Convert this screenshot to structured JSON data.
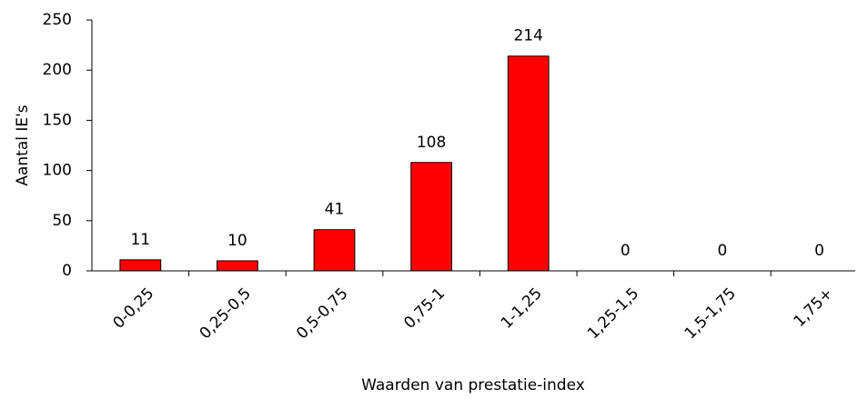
{
  "chart_data": {
    "type": "bar",
    "categories": [
      "0-0,25",
      "0,25-0,5",
      "0,5-0,75",
      "0,75-1",
      "1-1,25",
      "1,25-1,5",
      "1,5-1,75",
      "1,75+"
    ],
    "values": [
      11,
      10,
      41,
      108,
      214,
      0,
      0,
      0
    ],
    "color": "#ff0000",
    "ylim": [
      0,
      250
    ],
    "yticks": [
      0,
      50,
      100,
      150,
      200,
      250
    ],
    "y_label": "Aantal IE's",
    "x_label": "Waarden van prestatie-index",
    "grid": false
  }
}
